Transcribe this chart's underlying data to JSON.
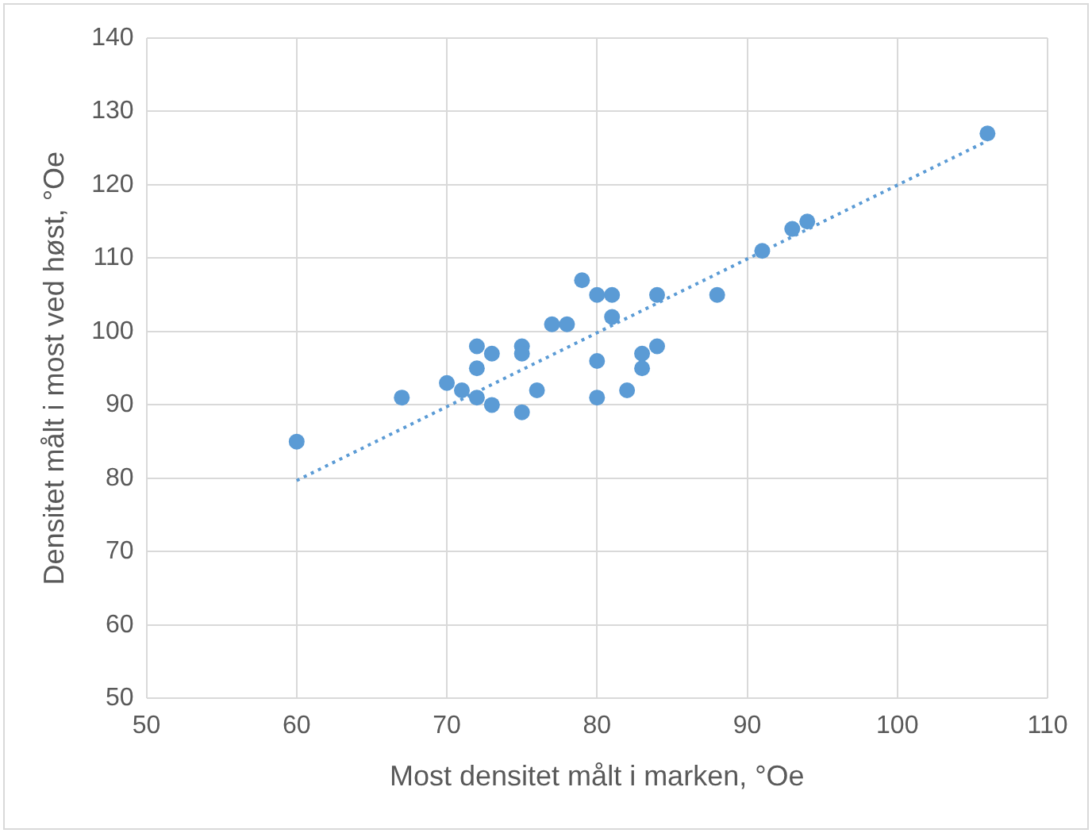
{
  "chart_data": {
    "type": "scatter",
    "xlabel": "Most densitet målt i marken, °Oe",
    "ylabel": "Densitet målt i most ved høst, °Oe",
    "xlim": [
      50,
      110
    ],
    "xticks": [
      50,
      60,
      70,
      80,
      90,
      100,
      110
    ],
    "ylim": [
      50,
      140
    ],
    "yticks": [
      50,
      60,
      70,
      80,
      90,
      100,
      110,
      120,
      130,
      140
    ],
    "grid": true,
    "legend": false,
    "marker": "circle",
    "series": [
      {
        "color": "#5b9bd5",
        "x": [
          60,
          67,
          70,
          71,
          72,
          72,
          72,
          73,
          73,
          75,
          75,
          75,
          76,
          77,
          78,
          79,
          80,
          80,
          80,
          81,
          81,
          82,
          83,
          83,
          84,
          84,
          88,
          91,
          93,
          94,
          106
        ],
        "values": [
          85,
          91,
          93,
          92,
          98,
          95,
          91,
          97,
          90,
          98,
          97,
          89,
          92,
          101,
          101,
          107,
          105,
          96,
          91,
          105,
          102,
          92,
          97,
          95,
          105,
          98,
          105,
          111,
          114,
          115,
          127
        ]
      },
      {
        "type": "line",
        "line_style": "dotted",
        "marker": "none",
        "color": "#5b9bd5",
        "x": [
          60,
          106
        ],
        "values": [
          79.7,
          126
        ]
      }
    ]
  }
}
